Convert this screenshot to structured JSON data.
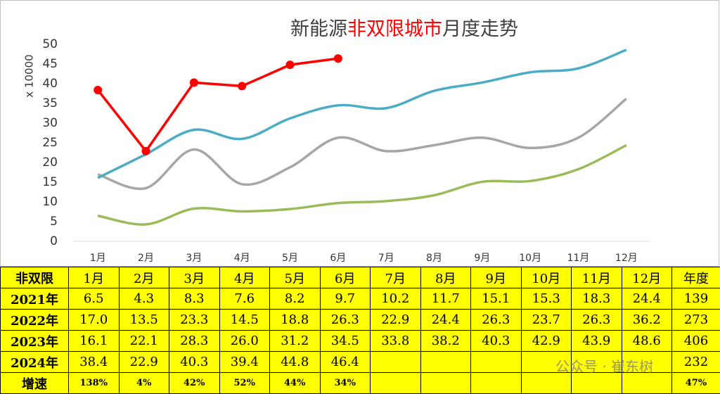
{
  "chart_data": {
    "type": "line",
    "title_segments": [
      "新能源",
      "非双限城市",
      "月度走势"
    ],
    "y_label": "x 10000",
    "categories": [
      "1月",
      "2月",
      "3月",
      "4月",
      "5月",
      "6月",
      "7月",
      "8月",
      "9月",
      "10月",
      "11月",
      "12月"
    ],
    "ylim": [
      0,
      50
    ],
    "yticks": [
      0,
      5,
      10,
      15,
      20,
      25,
      30,
      35,
      40,
      45,
      50
    ],
    "series": [
      {
        "name": "2021年",
        "color": "#9bbb59",
        "smooth": true,
        "markers": false,
        "values": [
          6.5,
          4.3,
          8.3,
          7.6,
          8.2,
          9.7,
          10.2,
          11.7,
          15.1,
          15.3,
          18.3,
          24.4
        ]
      },
      {
        "name": "2022年",
        "color": "#a6a6a6",
        "smooth": true,
        "markers": false,
        "values": [
          17.0,
          13.5,
          23.3,
          14.5,
          18.8,
          26.3,
          22.9,
          24.4,
          26.3,
          23.7,
          26.3,
          36.2
        ]
      },
      {
        "name": "2023年",
        "color": "#4bacc6",
        "smooth": true,
        "markers": false,
        "values": [
          16.1,
          22.1,
          28.3,
          26.0,
          31.2,
          34.5,
          33.8,
          38.2,
          40.3,
          42.9,
          43.9,
          48.6
        ]
      },
      {
        "name": "2024年",
        "color": "#ff0000",
        "smooth": false,
        "markers": true,
        "values": [
          38.4,
          22.9,
          40.3,
          39.4,
          44.8,
          46.4,
          null,
          null,
          null,
          null,
          null,
          null
        ]
      }
    ]
  },
  "table": {
    "rows": [
      [
        "非双限",
        "1月",
        "2月",
        "3月",
        "4月",
        "5月",
        "6月",
        "7月",
        "8月",
        "9月",
        "10月",
        "11月",
        "12月",
        "年度"
      ],
      [
        "2021年",
        "6.5",
        "4.3",
        "8.3",
        "7.6",
        "8.2",
        "9.7",
        "10.2",
        "11.7",
        "15.1",
        "15.3",
        "18.3",
        "24.4",
        "139"
      ],
      [
        "2022年",
        "17.0",
        "13.5",
        "23.3",
        "14.5",
        "18.8",
        "26.3",
        "22.9",
        "24.4",
        "26.3",
        "23.7",
        "26.3",
        "36.2",
        "273"
      ],
      [
        "2023年",
        "16.1",
        "22.1",
        "28.3",
        "26.0",
        "31.2",
        "34.5",
        "33.8",
        "38.2",
        "40.3",
        "42.9",
        "43.9",
        "48.6",
        "406"
      ],
      [
        "2024年",
        "38.4",
        "22.9",
        "40.3",
        "39.4",
        "44.8",
        "46.4",
        null,
        null,
        null,
        null,
        null,
        null,
        "232"
      ],
      [
        "增速",
        "138%",
        "4%",
        "42%",
        "52%",
        "44%",
        "34%",
        null,
        null,
        null,
        null,
        null,
        null,
        "47%"
      ]
    ]
  },
  "watermark": "公众号 · 崔东树"
}
